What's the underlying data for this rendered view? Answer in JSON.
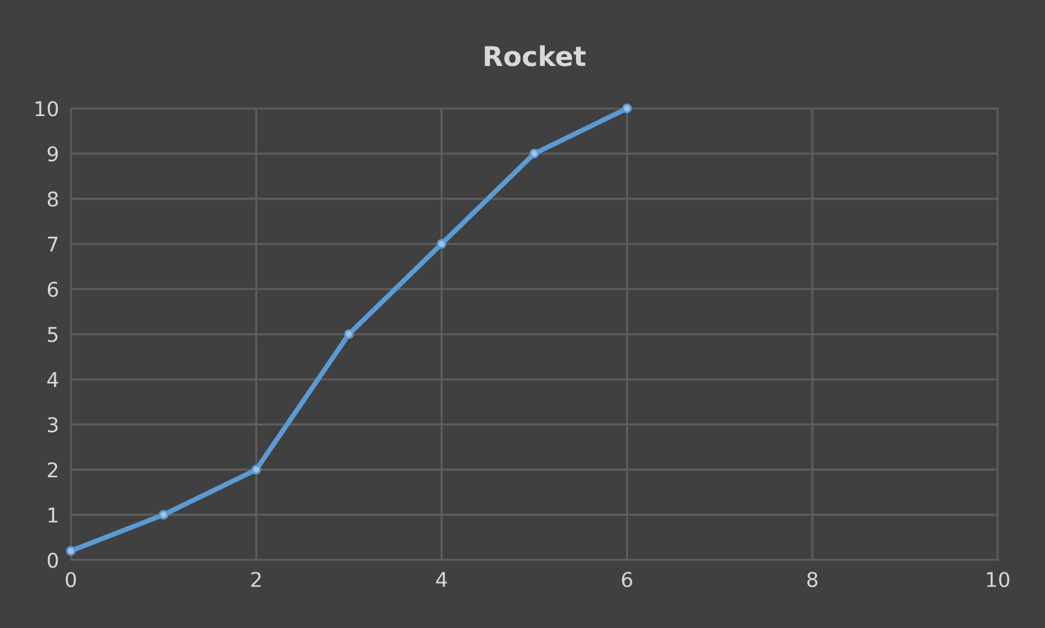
{
  "chart_data": {
    "type": "line",
    "title": "Rocket",
    "series": [
      {
        "color": "#5b9bd5",
        "x": [
          0,
          1,
          2,
          3,
          4,
          5,
          6
        ],
        "values": [
          0.2,
          1,
          2,
          5,
          7,
          9,
          10
        ]
      }
    ],
    "xlim": [
      0,
      10
    ],
    "xticks": [
      0,
      2,
      4,
      6,
      8,
      10
    ],
    "ylim": [
      0,
      10
    ],
    "yticks": [
      0,
      1,
      2,
      3,
      4,
      5,
      6,
      7,
      8,
      9,
      10
    ],
    "grid": true,
    "marker": "circle",
    "line_style": "solid"
  }
}
